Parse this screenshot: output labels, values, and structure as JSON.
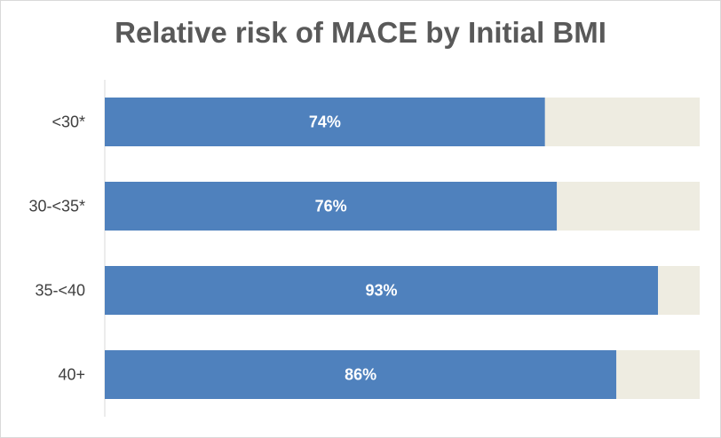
{
  "chart_data": {
    "type": "bar",
    "orientation": "horizontal",
    "stacked_to_100": true,
    "title": "Relative risk of MACE by Initial BMI",
    "categories": [
      "<30*",
      "30-<35*",
      "35-<40",
      "40+"
    ],
    "series": [
      {
        "values": [
          74,
          76,
          93,
          86
        ],
        "labels": [
          "74%",
          "76%",
          "93%",
          "86%"
        ]
      },
      {
        "values": [
          26,
          24,
          7,
          14
        ]
      }
    ],
    "xlim": [
      0,
      100
    ],
    "grid": false,
    "colors": {
      "primary": "#4f81bd",
      "remainder": "#eeece1"
    }
  }
}
